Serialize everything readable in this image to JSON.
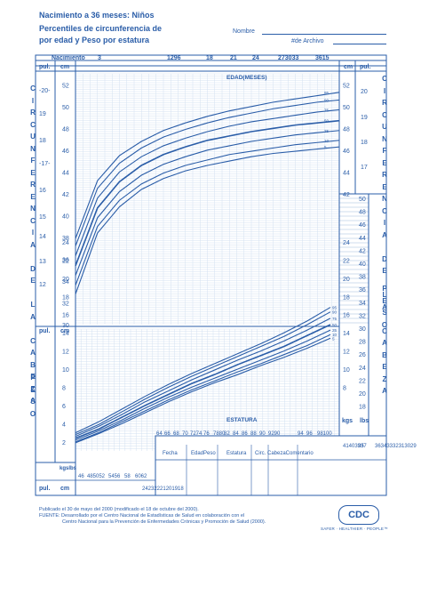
{
  "header": {
    "title_line1": "Nacimiento a 36 meses: Niños",
    "title_line2": "Percentiles de circunferencia de",
    "title_line3": "por edad y Peso por estatura",
    "name_label": "Nombre",
    "record_label": "#de Archivo"
  },
  "top_axis": {
    "title": "Nacimiento",
    "ticks": [
      "3",
      "1296",
      "18",
      "21",
      "24",
      "273033",
      "3615"
    ]
  },
  "side_text": {
    "left_head": [
      "C",
      "I",
      "R",
      "C",
      "U",
      "N",
      "F",
      "E",
      "R",
      "E",
      "N",
      "C",
      "I",
      "A",
      "",
      "D",
      "E",
      "",
      "L",
      "A",
      "",
      "C",
      "A",
      "B",
      "E",
      "Z",
      "A"
    ],
    "right_head": [
      "C",
      "I",
      "R",
      "C",
      "U",
      "N",
      "F",
      "E",
      "R",
      "E",
      "N",
      "C",
      "I",
      "A",
      "",
      "D",
      "E",
      "",
      "L",
      "A",
      "",
      "C",
      "A",
      "B",
      "E",
      "Z",
      "A"
    ],
    "left_weight": [
      "P",
      "E",
      "S",
      "O"
    ],
    "right_weight": [
      "P",
      "E",
      "S",
      "O"
    ]
  },
  "chart_data": [
    {
      "type": "line",
      "title": "",
      "xlabel": "EDAD(MESES)",
      "ylabel": "cm",
      "x": [
        0,
        3,
        6,
        9,
        12,
        15,
        18,
        21,
        24,
        27,
        30,
        33,
        36
      ],
      "ylim": [
        30,
        53
      ],
      "ytick_cm": [
        "52",
        "50",
        "48",
        "46",
        "44",
        "42",
        "40",
        "38",
        "36",
        "34",
        "32",
        "30"
      ],
      "ytick_in_left": [
        "-20-",
        "19",
        "18",
        "-17-",
        "16",
        "15",
        "14",
        "13",
        "12"
      ],
      "ytick_in_right": [
        "20",
        "19",
        "18",
        "17"
      ],
      "series": [
        {
          "name": "95",
          "values": [
            37.9,
            43.2,
            45.5,
            46.8,
            47.8,
            48.5,
            49.1,
            49.6,
            50.0,
            50.4,
            50.7,
            51.0,
            51.3
          ]
        },
        {
          "name": "90",
          "values": [
            37.2,
            42.5,
            44.8,
            46.2,
            47.2,
            47.9,
            48.5,
            49.0,
            49.4,
            49.8,
            50.1,
            50.4,
            50.6
          ]
        },
        {
          "name": "75",
          "values": [
            36.3,
            41.6,
            44.0,
            45.4,
            46.4,
            47.1,
            47.7,
            48.2,
            48.6,
            48.9,
            49.2,
            49.5,
            49.7
          ]
        },
        {
          "name": "50",
          "values": [
            35.4,
            40.7,
            43.1,
            44.6,
            45.6,
            46.3,
            46.9,
            47.3,
            47.7,
            48.0,
            48.3,
            48.5,
            48.7
          ]
        },
        {
          "name": "25",
          "values": [
            34.5,
            39.8,
            42.2,
            43.7,
            44.7,
            45.4,
            46.0,
            46.4,
            46.8,
            47.1,
            47.4,
            47.6,
            47.8
          ]
        },
        {
          "name": "10",
          "values": [
            33.6,
            39.0,
            41.4,
            42.9,
            43.9,
            44.6,
            45.1,
            45.6,
            45.9,
            46.2,
            46.5,
            46.7,
            46.9
          ]
        },
        {
          "name": "5",
          "values": [
            32.8,
            38.4,
            40.8,
            42.4,
            43.4,
            44.1,
            44.6,
            45.0,
            45.4,
            45.7,
            45.9,
            46.1,
            46.3
          ]
        }
      ]
    },
    {
      "type": "line",
      "title": "",
      "xlabel": "ESTATURA",
      "ylabel": "kgs",
      "x": [
        45,
        50,
        55,
        60,
        65,
        70,
        75,
        80,
        85,
        90,
        95,
        100
      ],
      "ylim": [
        1,
        24
      ],
      "ytick_kg_left": [
        "24",
        "22",
        "20",
        "18",
        "16",
        "14",
        "12",
        "10",
        "8",
        "6",
        "4",
        "2"
      ],
      "ytick_kg_right": [
        "24",
        "22",
        "20",
        "18",
        "16",
        "14",
        "12",
        "10",
        "8"
      ],
      "ytick_lb_right": [
        "50",
        "48",
        "46",
        "44",
        "42",
        "40",
        "38",
        "36",
        "34",
        "32",
        "30",
        "28",
        "26",
        "24",
        "22",
        "20",
        "18"
      ],
      "xticks_cm_bottom": [
        "46",
        "485052",
        "5456",
        "58",
        "6062"
      ],
      "xticks_cm_mid": [
        "64",
        "66",
        "68",
        "70",
        "7274",
        "76",
        "7880",
        "82",
        "84",
        "86",
        "88",
        "90",
        "9290",
        "94",
        "96",
        "98100"
      ],
      "xticks_in": [
        "24232221201918"
      ],
      "right_in": [
        "41403937",
        "35",
        "36343332313029"
      ],
      "series": [
        {
          "name": "95",
          "values": [
            3.0,
            4.2,
            5.6,
            7.0,
            8.3,
            9.5,
            10.6,
            11.7,
            12.8,
            14.0,
            15.3,
            16.8
          ]
        },
        {
          "name": "90",
          "values": [
            2.8,
            3.9,
            5.3,
            6.7,
            8.0,
            9.2,
            10.3,
            11.4,
            12.5,
            13.6,
            14.9,
            16.3
          ]
        },
        {
          "name": "75",
          "values": [
            2.6,
            3.7,
            5.0,
            6.4,
            7.6,
            8.8,
            9.9,
            11.0,
            12.0,
            13.1,
            14.3,
            15.6
          ]
        },
        {
          "name": "50",
          "values": [
            2.4,
            3.4,
            4.7,
            6.0,
            7.2,
            8.4,
            9.4,
            10.5,
            11.5,
            12.5,
            13.7,
            14.9
          ]
        },
        {
          "name": "25",
          "values": [
            2.2,
            3.2,
            4.4,
            5.7,
            6.9,
            8.0,
            9.0,
            10.0,
            11.0,
            12.0,
            13.1,
            14.3
          ]
        },
        {
          "name": "10",
          "values": [
            2.0,
            3.0,
            4.2,
            5.4,
            6.6,
            7.7,
            8.7,
            9.7,
            10.6,
            11.6,
            12.6,
            13.8
          ]
        },
        {
          "name": "5",
          "values": [
            1.9,
            2.9,
            4.0,
            5.2,
            6.4,
            7.5,
            8.5,
            9.4,
            10.4,
            11.3,
            12.3,
            13.4
          ]
        }
      ]
    }
  ],
  "table": {
    "headers": [
      "Fecha",
      "EdadPeso",
      "Estatura",
      "Circ. CabezaComentario"
    ]
  },
  "unit_labels": {
    "pul": "pul.",
    "cm": "cm",
    "kgs": "kgs",
    "lbs": "lbs",
    "kgslbs": "kgslbs"
  },
  "footer": {
    "line1": "Publicado el 30 de mayo del 2000 (modificado el 18 de octubre del 2000).",
    "line2": "FUENTE: Desarrollado por el Centro Nacional de Estadísticas de Salud en colaboración con el",
    "line3": "Centro Nacional para la Prevención de Enfermedades Crónicas y Promoción de Salud (2000).",
    "logo_text": "CDC",
    "tagline": "SAFER · HEALTHIER · PEOPLE™"
  },
  "colors": {
    "ink": "#2a5da8",
    "grid": "#9fb9dd",
    "grid_fine": "#d3e0f1"
  }
}
